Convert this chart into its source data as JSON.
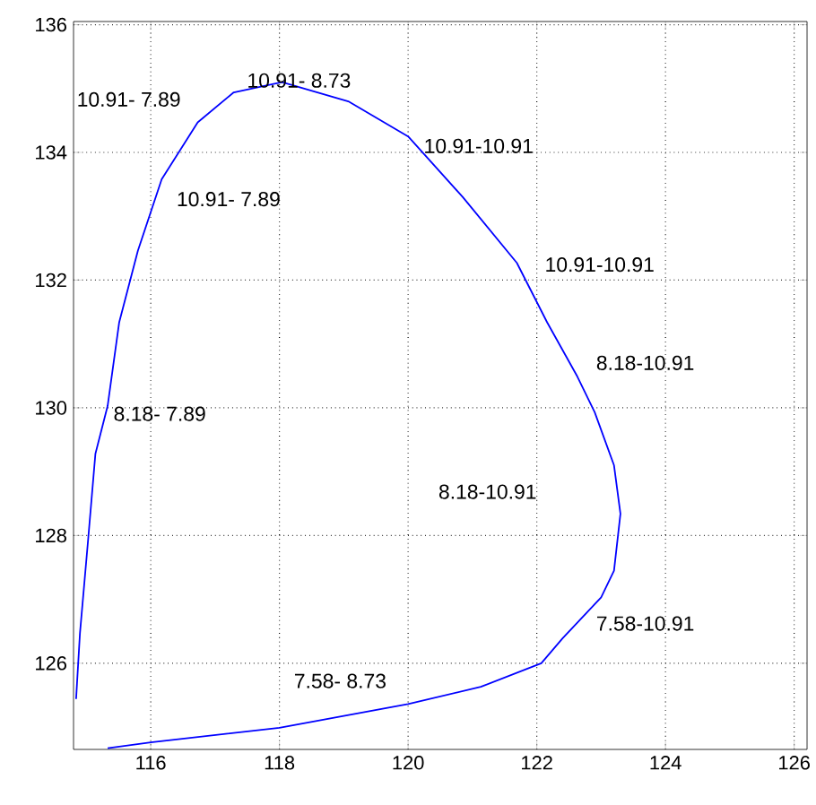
{
  "chart_data": {
    "type": "line",
    "xlim": [
      114.8,
      126.2
    ],
    "ylim": [
      124.65,
      136.05
    ],
    "xticks": [
      116,
      118,
      120,
      122,
      124,
      126
    ],
    "yticks": [
      126,
      128,
      130,
      132,
      134,
      136
    ],
    "grid": true,
    "line_style": "solid",
    "marker": "none",
    "series": [
      {
        "color": "#0000ff",
        "x": [
          115.33,
          116.0,
          118.0,
          120.0,
          121.13,
          122.07,
          122.4,
          123.0,
          123.2,
          123.3,
          123.2,
          122.9,
          122.63,
          122.16,
          121.69,
          120.85,
          120.0,
          119.07,
          118.04,
          117.29,
          116.73,
          116.17,
          115.8,
          115.51,
          115.33,
          115.14,
          115.03,
          114.9,
          114.84
        ],
        "values": [
          124.67,
          124.76,
          124.99,
          125.36,
          125.63,
          126.0,
          126.39,
          127.03,
          127.45,
          128.34,
          129.1,
          129.93,
          130.49,
          131.34,
          132.27,
          133.3,
          134.25,
          134.8,
          135.1,
          134.94,
          134.47,
          133.58,
          132.46,
          131.34,
          130.03,
          129.28,
          127.97,
          126.47,
          125.44
        ]
      }
    ],
    "annotations": [
      "10.91- 7.89",
      "10.91- 8.73",
      "10.91-10.91",
      "10.91- 7.89",
      "10.91-10.91",
      "8.18-10.91",
      "8.18- 7.89",
      "8.18-10.91",
      "7.58-10.91",
      "7.58- 8.73"
    ]
  }
}
